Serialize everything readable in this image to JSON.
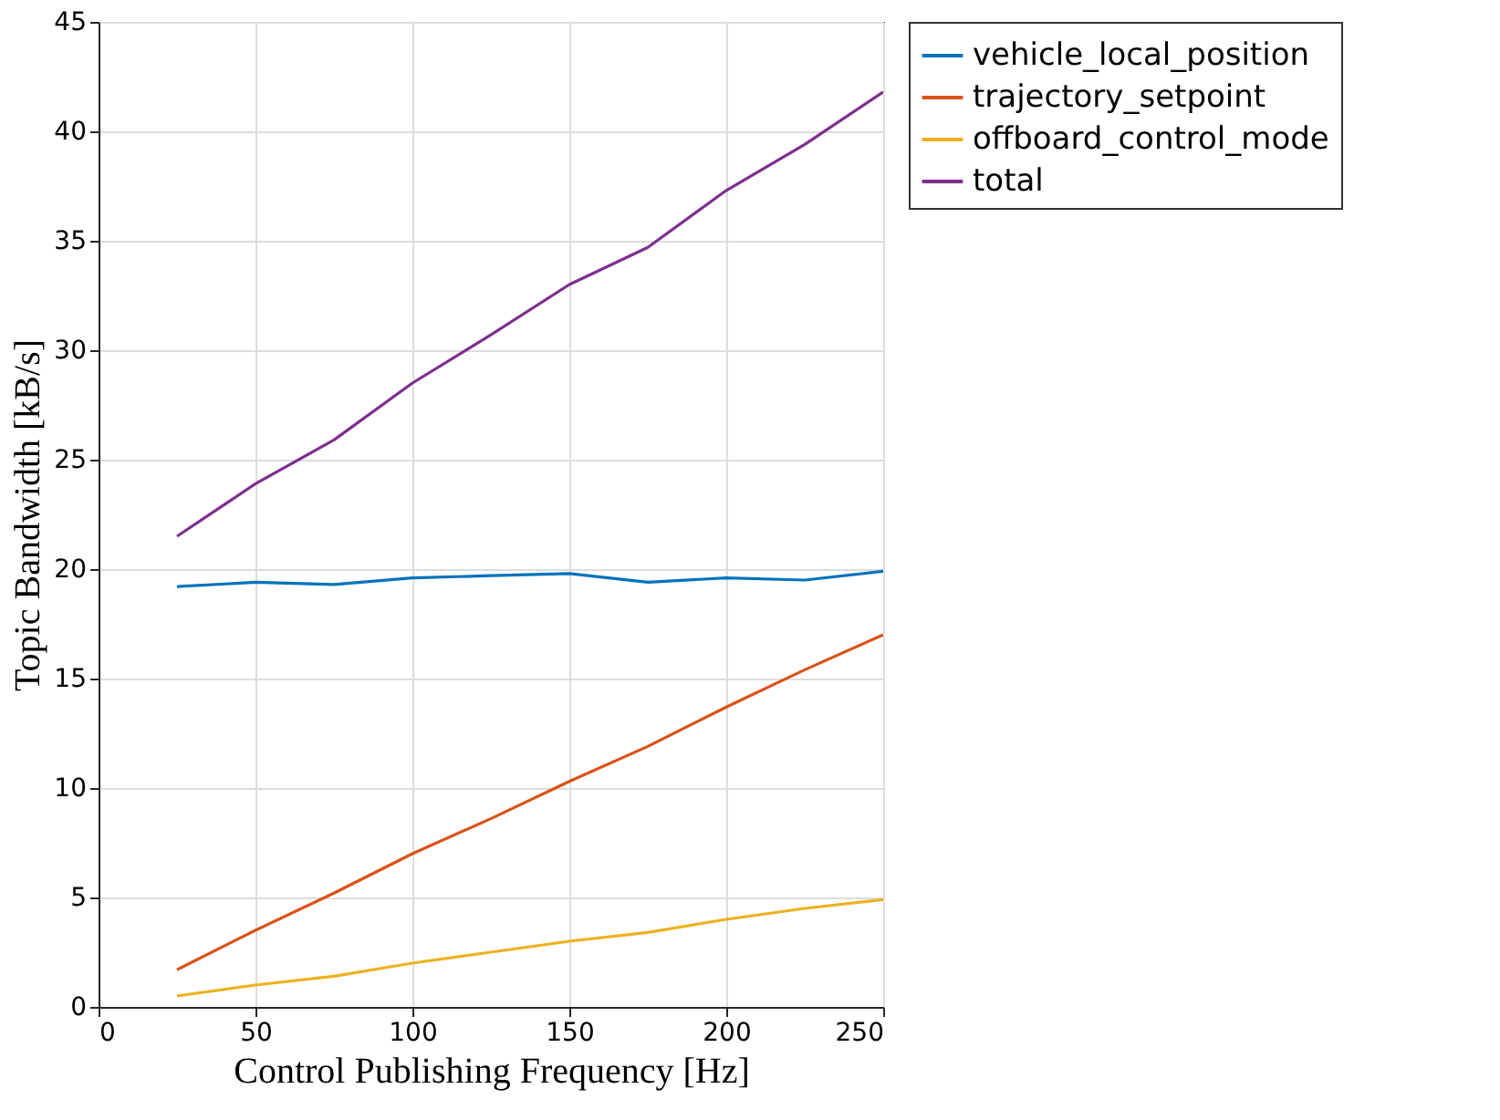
{
  "chart_data": {
    "type": "line",
    "xlabel": "Control Publishing Frequency [Hz]",
    "ylabel": "Topic Bandwidth [kB/s]",
    "x": [
      25,
      50,
      75,
      100,
      125,
      150,
      175,
      200,
      225,
      250
    ],
    "series": [
      {
        "name": "vehicle_local_position",
        "color": "#0072bd",
        "values": [
          19.2,
          19.4,
          19.3,
          19.6,
          19.7,
          19.8,
          19.4,
          19.6,
          19.5,
          19.9
        ]
      },
      {
        "name": "trajectory_setpoint",
        "color": "#d95319",
        "values": [
          1.7,
          3.5,
          5.2,
          7.0,
          8.6,
          10.3,
          11.9,
          13.7,
          15.4,
          17.0
        ]
      },
      {
        "name": "offboard_control_mode",
        "color": "#edb120",
        "values": [
          0.5,
          1.0,
          1.4,
          2.0,
          2.5,
          3.0,
          3.4,
          4.0,
          4.5,
          4.9
        ]
      },
      {
        "name": "total",
        "color": "#7e2f8e",
        "values": [
          21.5,
          23.9,
          25.9,
          28.5,
          30.7,
          33.0,
          34.7,
          37.3,
          39.4,
          41.8
        ]
      }
    ],
    "xlim": [
      0,
      250
    ],
    "xticks": [
      0,
      50,
      100,
      150,
      200,
      250
    ],
    "ylim": [
      0,
      45
    ],
    "yticks": [
      0,
      5,
      10,
      15,
      20,
      25,
      30,
      35,
      40,
      45
    ],
    "grid": true,
    "legend": "right",
    "marker": "none",
    "line_style": "solid"
  }
}
